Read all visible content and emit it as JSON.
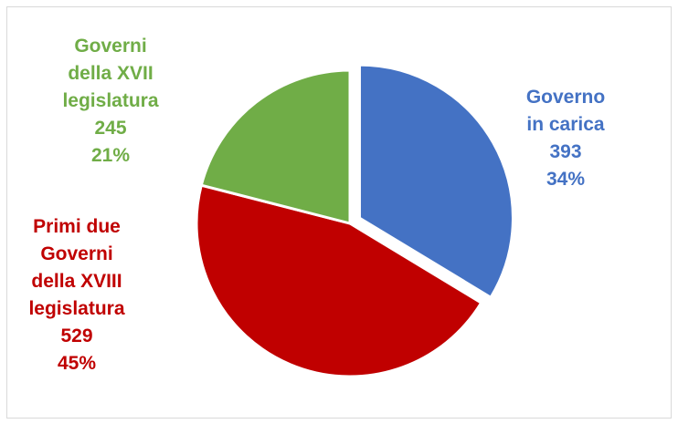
{
  "chart_data": {
    "type": "pie",
    "slices": [
      {
        "key": "governo-in-carica",
        "label_lines": [
          "Governo",
          "in carica"
        ],
        "value": 393,
        "percent": "34%",
        "color": "#4472c4",
        "exploded": true
      },
      {
        "key": "primi-due-governi",
        "label_lines": [
          "Primi due",
          "Governi",
          "della XVIII",
          "legislatura"
        ],
        "value": 529,
        "percent": "45%",
        "color": "#c00000",
        "exploded": false
      },
      {
        "key": "governi-xvii",
        "label_lines": [
          "Governi",
          "della XVII",
          "legislatura"
        ],
        "value": 245,
        "percent": "21%",
        "color": "#70ad47",
        "exploded": false
      }
    ]
  }
}
